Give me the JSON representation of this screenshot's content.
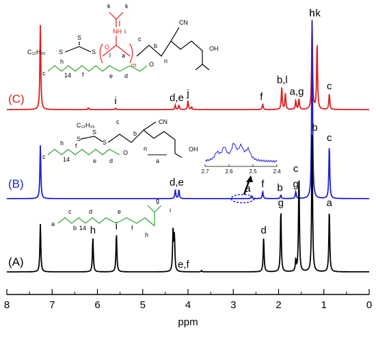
{
  "chart_data": {
    "type": "line",
    "xlabel": "ppm",
    "xlim": [
      8,
      0
    ],
    "x_ticks": [
      "8",
      "7",
      "6",
      "5",
      "4",
      "3",
      "2",
      "1",
      "0"
    ],
    "series": [
      {
        "name": "(C)",
        "color": "#e41a1c",
        "peaks": [
          {
            "ppm": 7.26,
            "h": 0.95
          },
          {
            "ppm": 6.2,
            "h": 0.02
          },
          {
            "ppm": 5.6,
            "h": 0.015
          },
          {
            "ppm": 4.28,
            "h": 0.05
          },
          {
            "ppm": 4.2,
            "h": 0.05
          },
          {
            "ppm": 4.0,
            "h": 0.1
          },
          {
            "ppm": 3.92,
            "h": 0.03
          },
          {
            "ppm": 2.35,
            "h": 0.06
          },
          {
            "ppm": 1.93,
            "h": 0.25
          },
          {
            "ppm": 1.85,
            "h": 0.18
          },
          {
            "ppm": 1.62,
            "h": 0.1
          },
          {
            "ppm": 1.55,
            "h": 0.12
          },
          {
            "ppm": 1.26,
            "h": 1.0
          },
          {
            "ppm": 1.15,
            "h": 0.75
          },
          {
            "ppm": 0.88,
            "h": 0.18
          }
        ],
        "labels": [
          {
            "text": "i",
            "ppm": 5.6
          },
          {
            "text": "d,e",
            "ppm": 4.25
          },
          {
            "text": "j",
            "ppm": 4.0
          },
          {
            "text": "f",
            "ppm": 2.38
          },
          {
            "text": "b,l",
            "ppm": 1.92
          },
          {
            "text": "a,g",
            "ppm": 1.6
          },
          {
            "text": "h",
            "ppm": 1.26
          },
          {
            "text": "k",
            "ppm": 1.13
          },
          {
            "text": "c",
            "ppm": 0.88
          }
        ]
      },
      {
        "name": "(B)",
        "color": "#1f1fd6",
        "peaks": [
          {
            "ppm": 7.26,
            "h": 0.3
          },
          {
            "ppm": 4.28,
            "h": 0.05
          },
          {
            "ppm": 4.2,
            "h": 0.05
          },
          {
            "ppm": 2.6,
            "h": 0.015
          },
          {
            "ppm": 2.35,
            "h": 0.04
          },
          {
            "ppm": 1.95,
            "h": 0.02
          },
          {
            "ppm": 1.62,
            "h": 0.04
          },
          {
            "ppm": 1.26,
            "h": 1.0
          },
          {
            "ppm": 0.88,
            "h": 0.3
          }
        ],
        "labels": [
          {
            "text": "d,e",
            "ppm": 4.25
          },
          {
            "text": "a",
            "ppm": 2.68
          },
          {
            "text": "f",
            "ppm": 2.35
          },
          {
            "text": "b",
            "ppm": 1.97
          },
          {
            "text": "g",
            "ppm": 1.62
          },
          {
            "text": "h",
            "ppm": 1.26
          },
          {
            "text": "c",
            "ppm": 0.88
          }
        ]
      },
      {
        "name": "(A)",
        "color": "#000000",
        "peaks": [
          {
            "ppm": 7.26,
            "h": 0.35
          },
          {
            "ppm": 6.1,
            "h": 0.25
          },
          {
            "ppm": 5.58,
            "h": 0.28
          },
          {
            "ppm": 4.33,
            "h": 0.3
          },
          {
            "ppm": 4.3,
            "h": 0.25
          },
          {
            "ppm": 3.7,
            "h": 0.01
          },
          {
            "ppm": 2.33,
            "h": 0.25
          },
          {
            "ppm": 1.95,
            "h": 0.45
          },
          {
            "ppm": 1.62,
            "h": 0.08
          },
          {
            "ppm": 1.55,
            "h": 0.7
          },
          {
            "ppm": 1.26,
            "h": 1.0
          },
          {
            "ppm": 0.88,
            "h": 0.45
          }
        ],
        "labels": [
          {
            "text": "h",
            "ppm": 6.1
          },
          {
            "text": "i",
            "ppm": 5.58
          },
          {
            "text": "e,f",
            "ppm": 4.1
          },
          {
            "text": "d",
            "ppm": 2.33
          },
          {
            "text": "g",
            "ppm": 1.95
          },
          {
            "text": "c",
            "ppm": 1.62
          },
          {
            "text": "b",
            "ppm": 1.2
          },
          {
            "text": "a",
            "ppm": 0.88
          }
        ]
      }
    ],
    "inset": {
      "xlim": [
        2.7,
        2.4
      ],
      "x_ticks": [
        "2.7",
        "2.6",
        "2.5",
        "2.4"
      ]
    },
    "structure_text": {
      "c12h25": "C₁₂H₂₅",
      "s": "S",
      "cn": "CN",
      "oh": "OH",
      "o": "O",
      "nh": "NH",
      "c14": "14",
      "c_lab": "c",
      "h_lab": "h",
      "f_lab": "f",
      "e_lab": "e",
      "d_lab": "d",
      "b_lab": "b",
      "a_lab": "a",
      "g_lab": "g",
      "i_lab": "i",
      "j_lab": "j",
      "k_lab": "k",
      "l_lab": "l",
      "m_lab": "m",
      "n_lab": "n"
    }
  }
}
